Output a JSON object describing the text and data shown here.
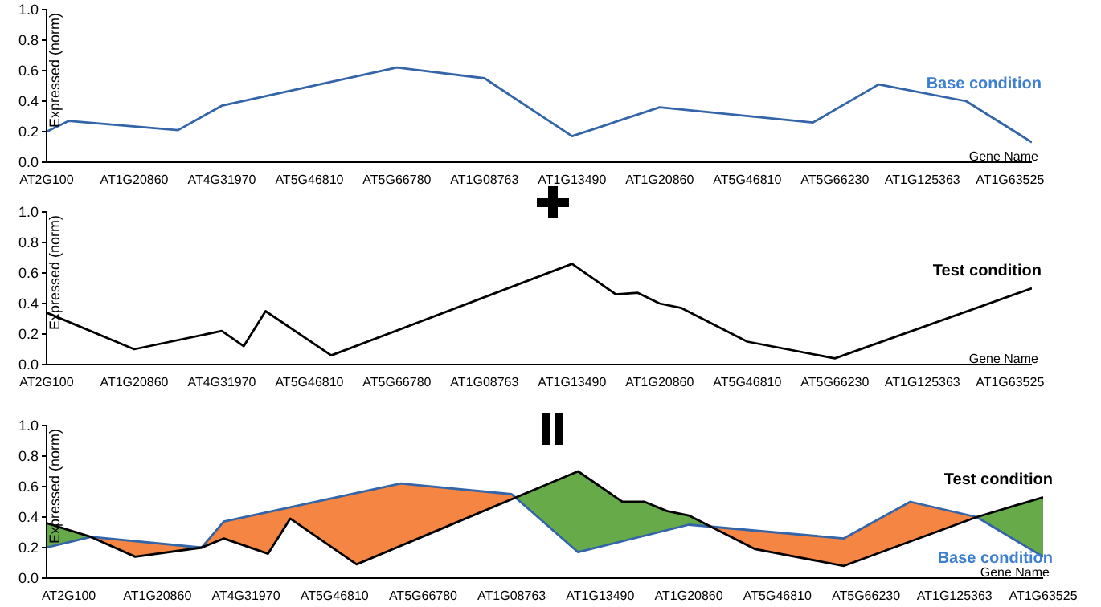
{
  "chart_data": [
    {
      "type": "line",
      "xlabel": "Gene Name",
      "ylabel": "Expressed (norm)",
      "categories": [
        "AT2G100",
        null,
        null,
        null,
        "AT1G20860",
        null,
        null,
        null,
        "AT4G31970",
        null,
        null,
        null,
        "AT5G46810",
        null,
        null,
        null,
        "AT5G66780",
        null,
        null,
        null,
        "AT1G08763",
        null,
        null,
        null,
        "AT1G13490",
        null,
        null,
        null,
        "AT1G20860",
        null,
        null,
        null,
        "AT5G46810",
        null,
        null,
        null,
        "AT5G66230",
        null,
        null,
        null,
        "AT1G125363",
        null,
        null,
        null,
        "AT1G63525",
        null
      ],
      "ylim": [
        0,
        1
      ],
      "yticks": [
        {
          "value": 0,
          "label": "0.0"
        },
        {
          "value": 0.2,
          "label": "0.2"
        },
        {
          "value": 0.4,
          "label": "0.4"
        },
        {
          "value": 0.6,
          "label": "0.6"
        },
        {
          "value": 0.8,
          "label": "0.8"
        },
        {
          "value": 1,
          "label": "1.0"
        }
      ],
      "grid": false,
      "legend": false,
      "marker": "none",
      "line_style": "solid",
      "series": [
        {
          "name": "Base condition",
          "color": "#3465a8",
          "values": [
            0.2,
            0.27,
            null,
            null,
            null,
            null,
            0.21,
            null,
            0.37,
            null,
            null,
            null,
            null,
            null,
            null,
            null,
            0.62,
            null,
            null,
            null,
            0.55,
            null,
            null,
            null,
            0.17,
            null,
            null,
            null,
            0.36,
            null,
            null,
            null,
            null,
            null,
            null,
            0.26,
            null,
            null,
            0.51,
            null,
            null,
            null,
            0.4,
            null,
            null,
            0.13
          ]
        }
      ]
    },
    {
      "type": "line",
      "xlabel": "Gene Name",
      "ylabel": "Expressed (norm)",
      "categories": [
        "AT2G100",
        null,
        null,
        null,
        "AT1G20860",
        null,
        null,
        null,
        "AT4G31970",
        null,
        null,
        null,
        "AT5G46810",
        null,
        null,
        null,
        "AT5G66780",
        null,
        null,
        null,
        "AT1G08763",
        null,
        null,
        null,
        "AT1G13490",
        null,
        null,
        null,
        "AT1G20860",
        null,
        null,
        null,
        "AT5G46810",
        null,
        null,
        null,
        "AT5G66230",
        null,
        null,
        null,
        "AT1G125363",
        null,
        null,
        null,
        "AT1G63525",
        null
      ],
      "ylim": [
        0,
        1
      ],
      "yticks": [
        {
          "value": 0,
          "label": "0.0"
        },
        {
          "value": 0.2,
          "label": "0.2"
        },
        {
          "value": 0.4,
          "label": "0.4"
        },
        {
          "value": 0.6,
          "label": "0.6"
        },
        {
          "value": 0.8,
          "label": "0.8"
        },
        {
          "value": 1,
          "label": "1.0"
        }
      ],
      "grid": false,
      "legend": false,
      "marker": "none",
      "line_style": "solid",
      "series": [
        {
          "name": "Test condition",
          "color": "#000000",
          "values": [
            0.34,
            null,
            null,
            null,
            0.1,
            null,
            null,
            null,
            0.22,
            0.12,
            0.35,
            null,
            null,
            0.06,
            null,
            null,
            null,
            null,
            null,
            null,
            null,
            null,
            null,
            null,
            0.66,
            null,
            0.46,
            0.47,
            0.4,
            0.37,
            null,
            null,
            0.15,
            null,
            null,
            null,
            0.04,
            null,
            null,
            null,
            null,
            null,
            null,
            null,
            null,
            0.5
          ]
        }
      ]
    },
    {
      "type": "area",
      "xlabel": "Gene Name",
      "ylabel": "Expressed (norm)",
      "categories": [
        null,
        "AT2G100",
        null,
        null,
        null,
        "AT1G20860",
        null,
        null,
        null,
        "AT4G31970",
        null,
        null,
        null,
        "AT5G46810",
        null,
        null,
        null,
        "AT5G66780",
        null,
        null,
        null,
        "AT1G08763",
        null,
        null,
        null,
        "AT1G13490",
        null,
        null,
        null,
        "AT1G20860",
        null,
        null,
        null,
        "AT5G46810",
        null,
        null,
        null,
        "AT5G66230",
        null,
        null,
        null,
        "AT1G125363",
        null,
        null,
        null,
        "AT1G63525"
      ],
      "ylim": [
        0,
        1
      ],
      "yticks": [
        {
          "value": 0,
          "label": "0.0"
        },
        {
          "value": 0.2,
          "label": "0.2"
        },
        {
          "value": 0.4,
          "label": "0.4"
        },
        {
          "value": 0.6,
          "label": "0.6"
        },
        {
          "value": 0.8,
          "label": "0.8"
        },
        {
          "value": 1,
          "label": "1.0"
        }
      ],
      "grid": false,
      "legend": false,
      "marker": "none",
      "line_style": "solid",
      "colors": [
        "#f58542",
        "#66aa4a"
      ],
      "series": [
        {
          "type": "line",
          "name": "Base condition",
          "color": "#3465a8",
          "values": [
            0.2,
            null,
            0.27,
            null,
            null,
            null,
            null,
            0.2,
            0.37,
            null,
            null,
            null,
            null,
            null,
            null,
            null,
            0.62,
            null,
            null,
            null,
            null,
            0.55,
            null,
            null,
            0.17,
            null,
            null,
            null,
            null,
            0.35,
            null,
            null,
            null,
            null,
            null,
            null,
            0.26,
            null,
            null,
            0.5,
            null,
            null,
            0.4,
            null,
            null,
            0.14
          ]
        },
        {
          "type": "line",
          "name": "Test condition",
          "color": "#000000",
          "values": [
            0.36,
            null,
            0.27,
            null,
            0.14,
            null,
            null,
            0.2,
            0.26,
            null,
            0.16,
            0.39,
            null,
            null,
            0.09,
            null,
            null,
            null,
            null,
            null,
            null,
            null,
            null,
            null,
            0.7,
            null,
            0.5,
            0.5,
            0.44,
            0.41,
            null,
            null,
            0.19,
            null,
            null,
            null,
            0.08,
            null,
            null,
            null,
            null,
            null,
            0.4,
            null,
            null,
            0.53
          ]
        }
      ]
    }
  ]
}
